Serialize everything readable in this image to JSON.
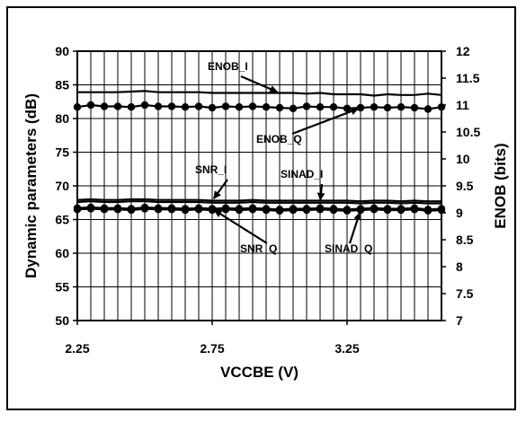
{
  "chart_data": {
    "type": "line",
    "xlabel": "VCCBE (V)",
    "ylabel": "Dynamic parameters (dB)",
    "ylabel_right": "ENOB (bits)",
    "xlim": [
      2.25,
      3.6
    ],
    "ylim": [
      50,
      90
    ],
    "ylim_right": [
      7,
      12
    ],
    "x_ticks": [
      "2.25",
      "2.75",
      "3.25"
    ],
    "y_ticks": [
      "50",
      "55",
      "60",
      "65",
      "70",
      "75",
      "80",
      "85",
      "90"
    ],
    "y_right_ticks": [
      "7",
      "7.5",
      "8",
      "8.5",
      "9",
      "9.5",
      "10",
      "10.5",
      "11",
      "11.5",
      "12"
    ],
    "grid": true,
    "x": [
      2.25,
      2.3,
      2.35,
      2.4,
      2.45,
      2.5,
      2.55,
      2.6,
      2.65,
      2.7,
      2.75,
      2.8,
      2.85,
      2.9,
      2.95,
      3.0,
      3.05,
      3.1,
      3.15,
      3.2,
      3.25,
      3.3,
      3.35,
      3.4,
      3.45,
      3.5,
      3.55,
      3.6
    ],
    "series": [
      {
        "name": "ENOB_I",
        "axis": "left",
        "marker": false,
        "values": [
          83.9,
          83.9,
          83.9,
          83.9,
          84.0,
          84.1,
          83.9,
          83.9,
          83.9,
          83.9,
          83.8,
          83.8,
          83.8,
          83.8,
          83.8,
          83.8,
          83.8,
          83.7,
          83.8,
          83.6,
          83.6,
          83.6,
          83.4,
          83.6,
          83.5,
          83.5,
          83.7,
          83.5
        ]
      },
      {
        "name": "ENOB_Q",
        "axis": "left",
        "marker": true,
        "values": [
          81.7,
          82.0,
          81.8,
          81.8,
          81.7,
          82.0,
          81.8,
          81.8,
          81.7,
          81.8,
          81.6,
          81.8,
          81.7,
          81.8,
          81.7,
          81.6,
          81.5,
          81.8,
          81.7,
          81.7,
          81.5,
          81.6,
          81.7,
          81.6,
          81.7,
          81.6,
          81.4,
          81.7
        ]
      },
      {
        "name": "SNR_I",
        "axis": "left",
        "marker": false,
        "values": [
          67.9,
          68.0,
          67.9,
          67.9,
          68.0,
          68.0,
          67.9,
          67.9,
          67.9,
          67.9,
          67.8,
          67.8,
          67.8,
          67.9,
          67.8,
          67.8,
          67.8,
          67.8,
          67.8,
          67.8,
          67.8,
          67.7,
          67.8,
          67.8,
          67.7,
          67.8,
          67.7,
          67.7
        ]
      },
      {
        "name": "SINAD_I",
        "axis": "left",
        "marker": false,
        "values": [
          67.6,
          67.7,
          67.6,
          67.6,
          67.7,
          67.7,
          67.6,
          67.6,
          67.6,
          67.6,
          67.5,
          67.5,
          67.5,
          67.6,
          67.5,
          67.5,
          67.5,
          67.5,
          67.5,
          67.5,
          67.5,
          67.4,
          67.5,
          67.5,
          67.4,
          67.5,
          67.4,
          67.4
        ]
      },
      {
        "name": "SNR_Q",
        "axis": "left",
        "marker": true,
        "values": [
          66.7,
          66.8,
          66.7,
          66.7,
          66.6,
          66.8,
          66.7,
          66.7,
          66.6,
          66.7,
          66.6,
          66.7,
          66.6,
          66.7,
          66.6,
          66.5,
          66.6,
          66.6,
          66.7,
          66.6,
          66.5,
          66.6,
          66.7,
          66.6,
          66.6,
          66.7,
          66.5,
          66.6
        ]
      },
      {
        "name": "SINAD_Q",
        "axis": "left",
        "marker": true,
        "values": [
          66.5,
          66.6,
          66.5,
          66.5,
          66.4,
          66.6,
          66.5,
          66.5,
          66.4,
          66.5,
          66.4,
          66.5,
          66.4,
          66.5,
          66.4,
          66.3,
          66.4,
          66.4,
          66.5,
          66.4,
          66.3,
          66.4,
          66.5,
          66.4,
          66.4,
          66.5,
          66.3,
          66.4
        ]
      }
    ],
    "annotations": [
      {
        "text": "ENOB_I",
        "target_series": "ENOB_I",
        "target_x": 3.0
      },
      {
        "text": "ENOB_Q",
        "target_series": "ENOB_Q",
        "target_x": 3.3
      },
      {
        "text": "SNR_I",
        "target_series": "SNR_I",
        "target_x": 2.75
      },
      {
        "text": "SINAD_I",
        "target_series": "SINAD_I",
        "target_x": 3.15
      },
      {
        "text": "SNR_Q",
        "target_series": "SNR_Q",
        "target_x": 2.75
      },
      {
        "text": "SINAD_Q",
        "target_series": "SINAD_Q",
        "target_x": 3.3
      }
    ]
  }
}
